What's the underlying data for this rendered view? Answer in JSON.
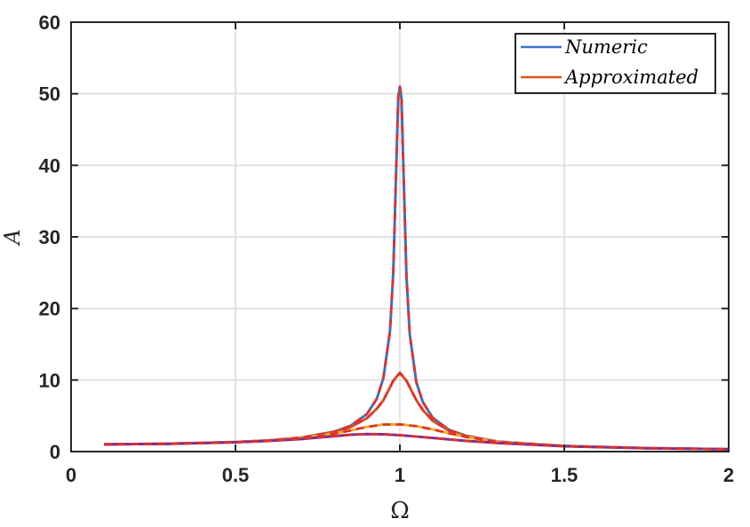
{
  "chart_data": {
    "type": "line",
    "xlabel": "Ω",
    "ylabel": "A",
    "xlim": [
      0,
      2
    ],
    "ylim": [
      0,
      60
    ],
    "xticks": [
      0,
      0.5,
      1,
      1.5,
      2
    ],
    "xtick_labels": [
      "0",
      "0.5",
      "1",
      "1.5",
      "2"
    ],
    "yticks": [
      0,
      10,
      20,
      30,
      40,
      50,
      60
    ],
    "ytick_labels": [
      "0",
      "10",
      "20",
      "30",
      "40",
      "50",
      "60"
    ],
    "grid": true,
    "legend_position": "top-right",
    "legend": [
      {
        "label": "Numeric",
        "color": "#3a74c4"
      },
      {
        "label": "Approximated",
        "color": "#d9531e"
      }
    ],
    "series": [
      {
        "color": "#3a74c4",
        "dash": "solid",
        "x": [
          0.1,
          0.3,
          0.5,
          0.6,
          0.7,
          0.8,
          0.85,
          0.9,
          0.93,
          0.95,
          0.97,
          0.98,
          0.99,
          0.995,
          1.0,
          1.005,
          1.01,
          1.02,
          1.03,
          1.05,
          1.07,
          1.1,
          1.15,
          1.2,
          1.3,
          1.5,
          1.75,
          2.0
        ],
        "y": [
          1.01,
          1.1,
          1.33,
          1.56,
          1.96,
          2.78,
          3.6,
          5.26,
          7.4,
          10.3,
          16.9,
          25.1,
          41.5,
          49.5,
          51.0,
          49.3,
          40.9,
          24.5,
          16.4,
          9.7,
          6.9,
          4.71,
          3.03,
          2.22,
          1.39,
          0.79,
          0.48,
          0.33
        ]
      },
      {
        "color": "#e02f2f",
        "dash": "dashed",
        "x": [
          0.1,
          0.3,
          0.5,
          0.6,
          0.7,
          0.8,
          0.85,
          0.9,
          0.93,
          0.95,
          0.97,
          0.98,
          0.99,
          0.995,
          1.0,
          1.005,
          1.01,
          1.02,
          1.03,
          1.05,
          1.07,
          1.1,
          1.15,
          1.2,
          1.3,
          1.5,
          1.75,
          2.0
        ],
        "y": [
          1.01,
          1.1,
          1.33,
          1.56,
          1.96,
          2.78,
          3.6,
          5.26,
          7.4,
          10.3,
          16.9,
          25.1,
          41.5,
          49.5,
          51.0,
          49.3,
          40.9,
          24.5,
          16.4,
          9.7,
          6.9,
          4.71,
          3.03,
          2.22,
          1.39,
          0.79,
          0.48,
          0.33
        ]
      },
      {
        "color": "#d9531e",
        "dash": "solid",
        "x": [
          0.1,
          0.3,
          0.5,
          0.6,
          0.7,
          0.8,
          0.85,
          0.9,
          0.93,
          0.95,
          0.97,
          0.98,
          1.0,
          1.02,
          1.03,
          1.05,
          1.07,
          1.1,
          1.15,
          1.2,
          1.3,
          1.5,
          1.75,
          2.0
        ],
        "y": [
          1.01,
          1.1,
          1.33,
          1.56,
          1.95,
          2.71,
          3.41,
          4.67,
          6.0,
          7.2,
          9.0,
          9.9,
          11.0,
          9.9,
          9.0,
          7.2,
          5.8,
          4.3,
          2.9,
          2.15,
          1.37,
          0.78,
          0.48,
          0.33
        ]
      },
      {
        "color": "#e02f2f",
        "dash": "dashed",
        "x": [
          0.1,
          0.3,
          0.5,
          0.6,
          0.7,
          0.8,
          0.85,
          0.9,
          0.93,
          0.95,
          0.97,
          0.98,
          1.0,
          1.02,
          1.03,
          1.05,
          1.07,
          1.1,
          1.15,
          1.2,
          1.3,
          1.5,
          1.75,
          2.0
        ],
        "y": [
          1.01,
          1.1,
          1.33,
          1.56,
          1.95,
          2.71,
          3.41,
          4.67,
          6.0,
          7.2,
          9.0,
          9.9,
          11.0,
          9.9,
          9.0,
          7.2,
          5.8,
          4.3,
          2.9,
          2.15,
          1.37,
          0.78,
          0.48,
          0.33
        ]
      },
      {
        "color": "#edb120",
        "dash": "solid",
        "x": [
          0.1,
          0.3,
          0.5,
          0.6,
          0.7,
          0.8,
          0.85,
          0.9,
          0.95,
          1.0,
          1.05,
          1.1,
          1.15,
          1.2,
          1.3,
          1.5,
          1.75,
          2.0
        ],
        "y": [
          1.01,
          1.1,
          1.32,
          1.53,
          1.88,
          2.5,
          2.95,
          3.45,
          3.78,
          3.8,
          3.55,
          3.1,
          2.55,
          2.05,
          1.35,
          0.78,
          0.48,
          0.33
        ]
      },
      {
        "color": "#e02f2f",
        "dash": "dashed",
        "x": [
          0.1,
          0.3,
          0.5,
          0.6,
          0.7,
          0.8,
          0.85,
          0.9,
          0.95,
          1.0,
          1.05,
          1.1,
          1.15,
          1.2,
          1.3,
          1.5,
          1.75,
          2.0
        ],
        "y": [
          1.01,
          1.1,
          1.32,
          1.53,
          1.88,
          2.5,
          2.95,
          3.45,
          3.78,
          3.8,
          3.55,
          3.1,
          2.55,
          2.05,
          1.35,
          0.78,
          0.48,
          0.33
        ]
      },
      {
        "color": "#7e2f8e",
        "dash": "solid",
        "x": [
          0.1,
          0.3,
          0.5,
          0.6,
          0.7,
          0.8,
          0.85,
          0.9,
          0.95,
          1.0,
          1.05,
          1.1,
          1.2,
          1.3,
          1.5,
          1.75,
          2.0
        ],
        "y": [
          1.01,
          1.09,
          1.3,
          1.48,
          1.75,
          2.15,
          2.35,
          2.45,
          2.42,
          2.3,
          2.1,
          1.9,
          1.5,
          1.2,
          0.75,
          0.47,
          0.33
        ]
      },
      {
        "color": "#e02f2f",
        "dash": "dashed",
        "x": [
          0.1,
          0.3,
          0.5,
          0.6,
          0.7,
          0.8,
          0.85,
          0.9,
          0.95,
          1.0,
          1.05,
          1.1,
          1.2,
          1.3,
          1.5,
          1.75,
          2.0
        ],
        "y": [
          1.01,
          1.09,
          1.3,
          1.48,
          1.75,
          2.15,
          2.35,
          2.45,
          2.42,
          2.3,
          2.1,
          1.9,
          1.5,
          1.2,
          0.75,
          0.47,
          0.33
        ]
      }
    ]
  }
}
